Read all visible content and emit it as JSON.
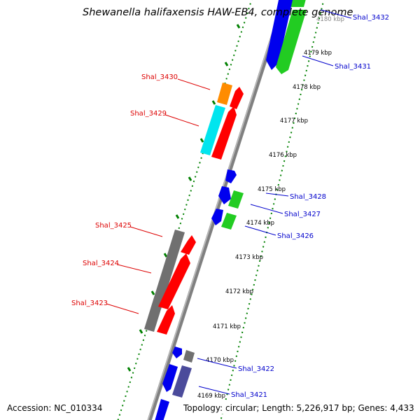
{
  "map": {
    "title": "Shewanella halifaxensis HAW-EB4, complete genome",
    "accession_text": "Accession: NC_010334",
    "summary_text": "Topology: circular; Length: 5,226,917 bp; Genes: 4,433",
    "colors": {
      "backbone": "#808080",
      "ticks": "#008000",
      "forward_labels": "#0000cc",
      "reverse_labels": "#dd0000",
      "gene_blue": "#0000ee",
      "gene_green": "#22cc22",
      "gene_red": "#ff0000",
      "gene_orange": "#ff8c00",
      "gene_cyan": "#00e5ee",
      "gene_gray": "#707070",
      "gene_slate": "#4b4b9b"
    },
    "ticks": [
      {
        "label": "4180 kbp"
      },
      {
        "label": "4179 kbp"
      },
      {
        "label": "4178 kbp"
      },
      {
        "label": "4177 kbp"
      },
      {
        "label": "4176 kbp"
      },
      {
        "label": "4175 kbp"
      },
      {
        "label": "4174 kbp"
      },
      {
        "label": "4173 kbp"
      },
      {
        "label": "4172 kbp"
      },
      {
        "label": "4171 kbp"
      },
      {
        "label": "4170 kbp"
      },
      {
        "label": "4169 kbp"
      }
    ],
    "gene_labels_forward": [
      {
        "name": "Shal_3432"
      },
      {
        "name": "Shal_3431"
      },
      {
        "name": "Shal_3428"
      },
      {
        "name": "Shal_3427"
      },
      {
        "name": "Shal_3426"
      },
      {
        "name": "Shal_3422"
      },
      {
        "name": "Shal_3421"
      }
    ],
    "gene_labels_reverse": [
      {
        "name": "Shal_3430"
      },
      {
        "name": "Shal_3429"
      },
      {
        "name": "Shal_3425"
      },
      {
        "name": "Shal_3424"
      },
      {
        "name": "Shal_3423"
      }
    ]
  }
}
